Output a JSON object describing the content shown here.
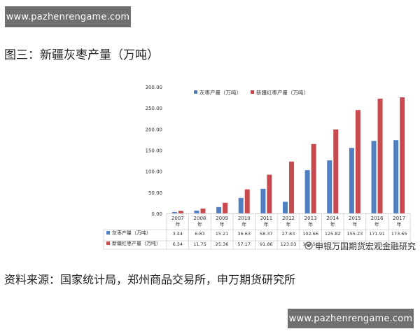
{
  "watermark_top": "www.pazhenrengame.com",
  "watermark_bottom": "www.pazhenrengame.com",
  "figure_title": "图三：新疆灰枣产量（万吨）",
  "source_line": "资料来源：国家统计局，郑州商品交易所，申万期货研究所",
  "logo_text": "申银万国期货宏观金融研究",
  "colors": {
    "series1": "#4f7fc1",
    "series2": "#c8494e"
  },
  "chart_data": {
    "type": "bar",
    "categories": [
      "2007\n年",
      "2008\n年",
      "2009\n年",
      "2010\n年",
      "2011\n年",
      "2012\n年",
      "2013\n年",
      "2014\n年",
      "2015\n年",
      "2016\n年",
      "2017\n年"
    ],
    "series": [
      {
        "name": "灰枣产量（万吨）",
        "values": [
          3.44,
          6.83,
          15.21,
          36.63,
          58.37,
          27.83,
          102.66,
          125.82,
          155.23,
          171.91,
          173.65
        ]
      },
      {
        "name": "新疆红枣产量（万吨）",
        "values": [
          6.34,
          11.75,
          25.36,
          57.17,
          91.86,
          123.03,
          164.51,
          199.0,
          245.0,
          272.0,
          275.0
        ]
      }
    ],
    "table_text": {
      "row1": [
        "3.44",
        "6.83",
        "15.21",
        "36.63",
        "58.37",
        "27.83",
        "102.66",
        "125.82",
        "155.23",
        "171.91",
        "173.65"
      ],
      "row2": [
        "6.34",
        "11.75",
        "25.36",
        "57.17",
        "91.86",
        "123.03",
        "164.51",
        "",
        "",
        "",
        ""
      ]
    },
    "yticks": [
      "0.00",
      "50.00",
      "100.00",
      "150.00",
      "200.00",
      "250.00",
      "300.00"
    ],
    "ylim": [
      0,
      300
    ],
    "grid": false,
    "legend_position": "top",
    "title": "",
    "xlabel": "",
    "ylabel": ""
  }
}
